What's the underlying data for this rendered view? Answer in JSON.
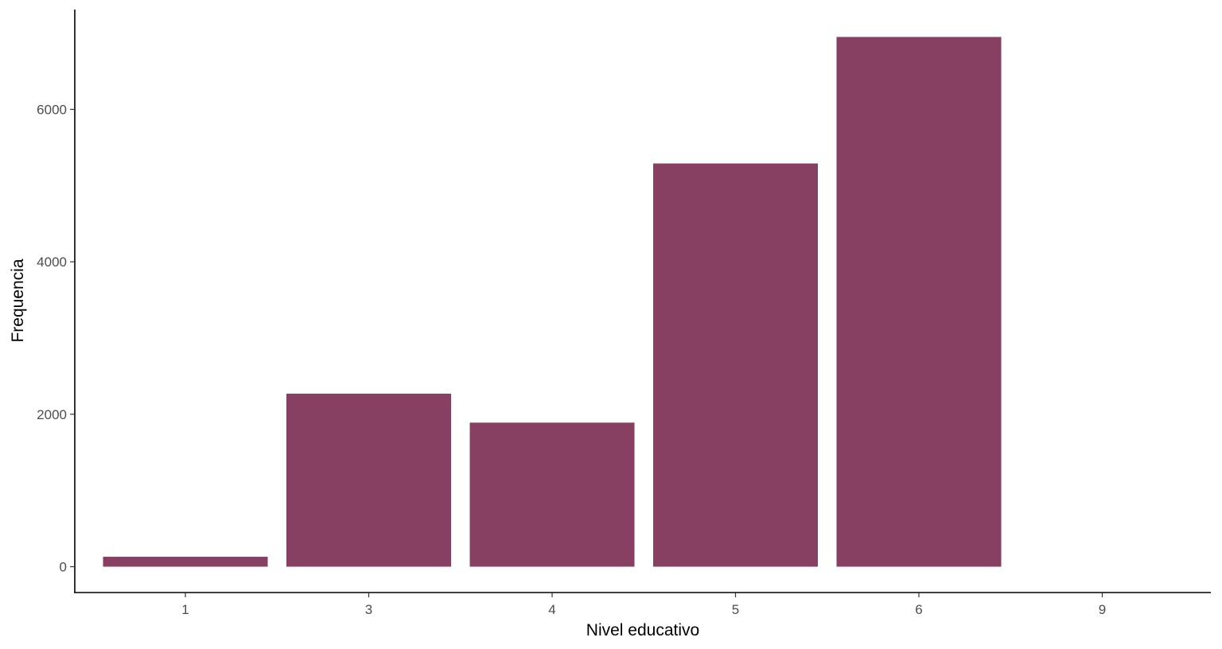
{
  "chart_data": {
    "type": "bar",
    "categories": [
      "1",
      "3",
      "4",
      "5",
      "6",
      "9"
    ],
    "values": [
      130,
      2270,
      1890,
      5290,
      6950,
      0
    ],
    "xlabel": "Nivel educativo",
    "ylabel": "Frequencia",
    "ylim": [
      -350,
      7300
    ],
    "yticks": [
      0,
      2000,
      4000,
      6000
    ],
    "ytick_labels": [
      "0",
      "2000",
      "4000",
      "6000"
    ],
    "bar_color": "#873f62",
    "grid": false,
    "legend": "none"
  }
}
